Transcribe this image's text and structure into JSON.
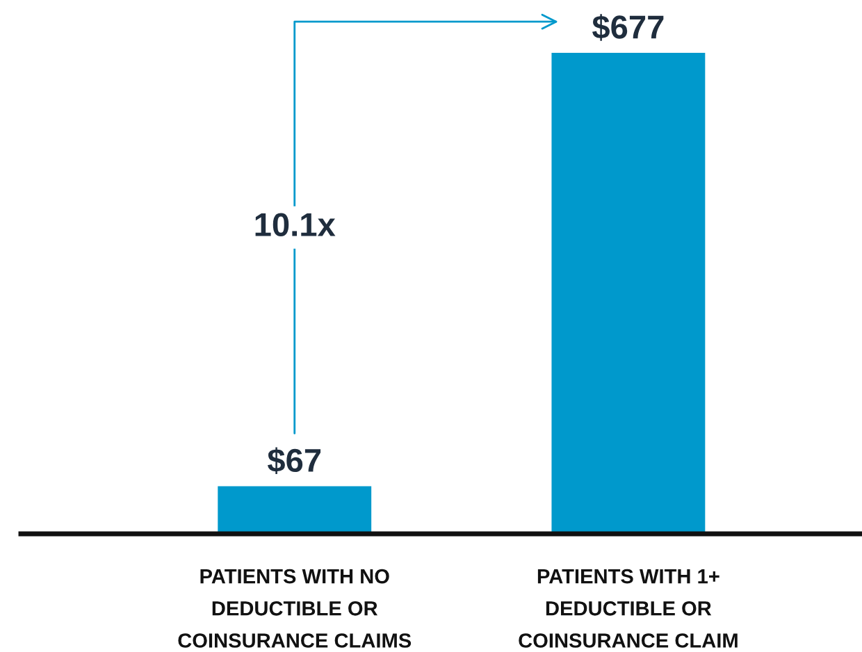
{
  "chart_data": {
    "type": "bar",
    "categories": [
      "PATIENTS WITH NO\nDEDUCTIBLE OR\nCOINSURANCE CLAIMS",
      "PATIENTS WITH 1+\nDEDUCTIBLE OR\nCOINSURANCE CLAIM"
    ],
    "values": [
      67,
      677
    ],
    "color": "#0099cc",
    "value_labels": [
      "$67",
      "$677"
    ],
    "annotations": [
      "10.1x"
    ],
    "grid": false,
    "legend": false
  }
}
